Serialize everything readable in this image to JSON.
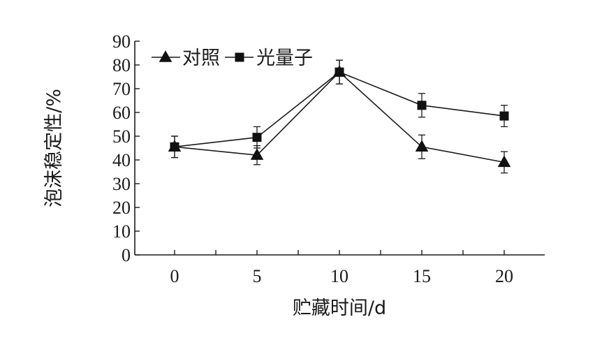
{
  "chart_data": {
    "type": "line",
    "title": "",
    "xlabel": "贮藏时间/d",
    "ylabel": "泡沫稳定性/%",
    "x": [
      0,
      5,
      10,
      15,
      20
    ],
    "x_ticks": [
      "0",
      "5",
      "10",
      "15",
      "20"
    ],
    "y_ticks": [
      "0",
      "10",
      "20",
      "30",
      "40",
      "50",
      "60",
      "70",
      "80",
      "90"
    ],
    "ylim": [
      0,
      90
    ],
    "grid": false,
    "legend_position": "top-left",
    "series": [
      {
        "name": "对照",
        "marker": "triangle",
        "values": [
          45.5,
          42,
          77,
          45.5,
          39
        ],
        "errors": [
          4.5,
          4,
          5,
          5,
          4.5
        ]
      },
      {
        "name": "光量子",
        "marker": "square",
        "values": [
          45.5,
          49.5,
          77,
          63,
          58.5
        ],
        "errors": [
          4.5,
          4.5,
          5,
          5,
          4.5
        ]
      }
    ],
    "colors": {
      "line": "#1a1a1a",
      "marker": "#111111"
    }
  }
}
